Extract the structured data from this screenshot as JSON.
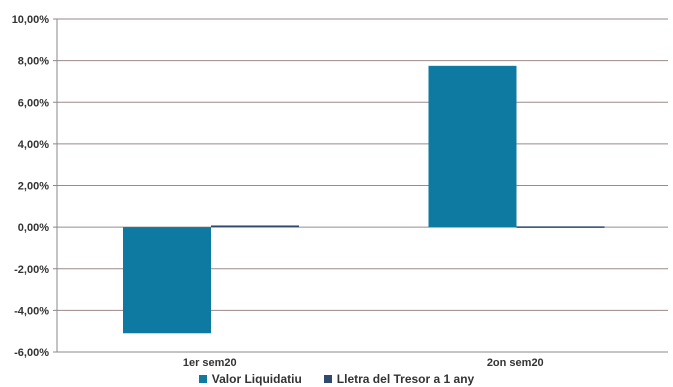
{
  "chart_data": {
    "type": "bar",
    "categories": [
      "1er sem20",
      "2on sem20"
    ],
    "series": [
      {
        "name": "Valor Liquidatiu",
        "values": [
          -5.1,
          7.75
        ],
        "color": "#0e7aa1"
      },
      {
        "name": "Lletra del Tresor a 1 any",
        "values": [
          0.08,
          0.0
        ],
        "color": "#2f4a6d"
      }
    ],
    "ylim": [
      -6,
      10
    ],
    "y_ticks": [
      {
        "value": 10,
        "label": "10,00%"
      },
      {
        "value": 8,
        "label": "8,00%"
      },
      {
        "value": 6,
        "label": "6,00%"
      },
      {
        "value": 4,
        "label": "4,00%"
      },
      {
        "value": 2,
        "label": "2,00%"
      },
      {
        "value": 0,
        "label": "0,00%"
      },
      {
        "value": -2,
        "label": "-2,00%"
      },
      {
        "value": -4,
        "label": "-4,00%"
      },
      {
        "value": -6,
        "label": "-6,00%"
      }
    ],
    "grid": true,
    "legend_position": "bottom",
    "title": "",
    "xlabel": "",
    "ylabel": ""
  }
}
